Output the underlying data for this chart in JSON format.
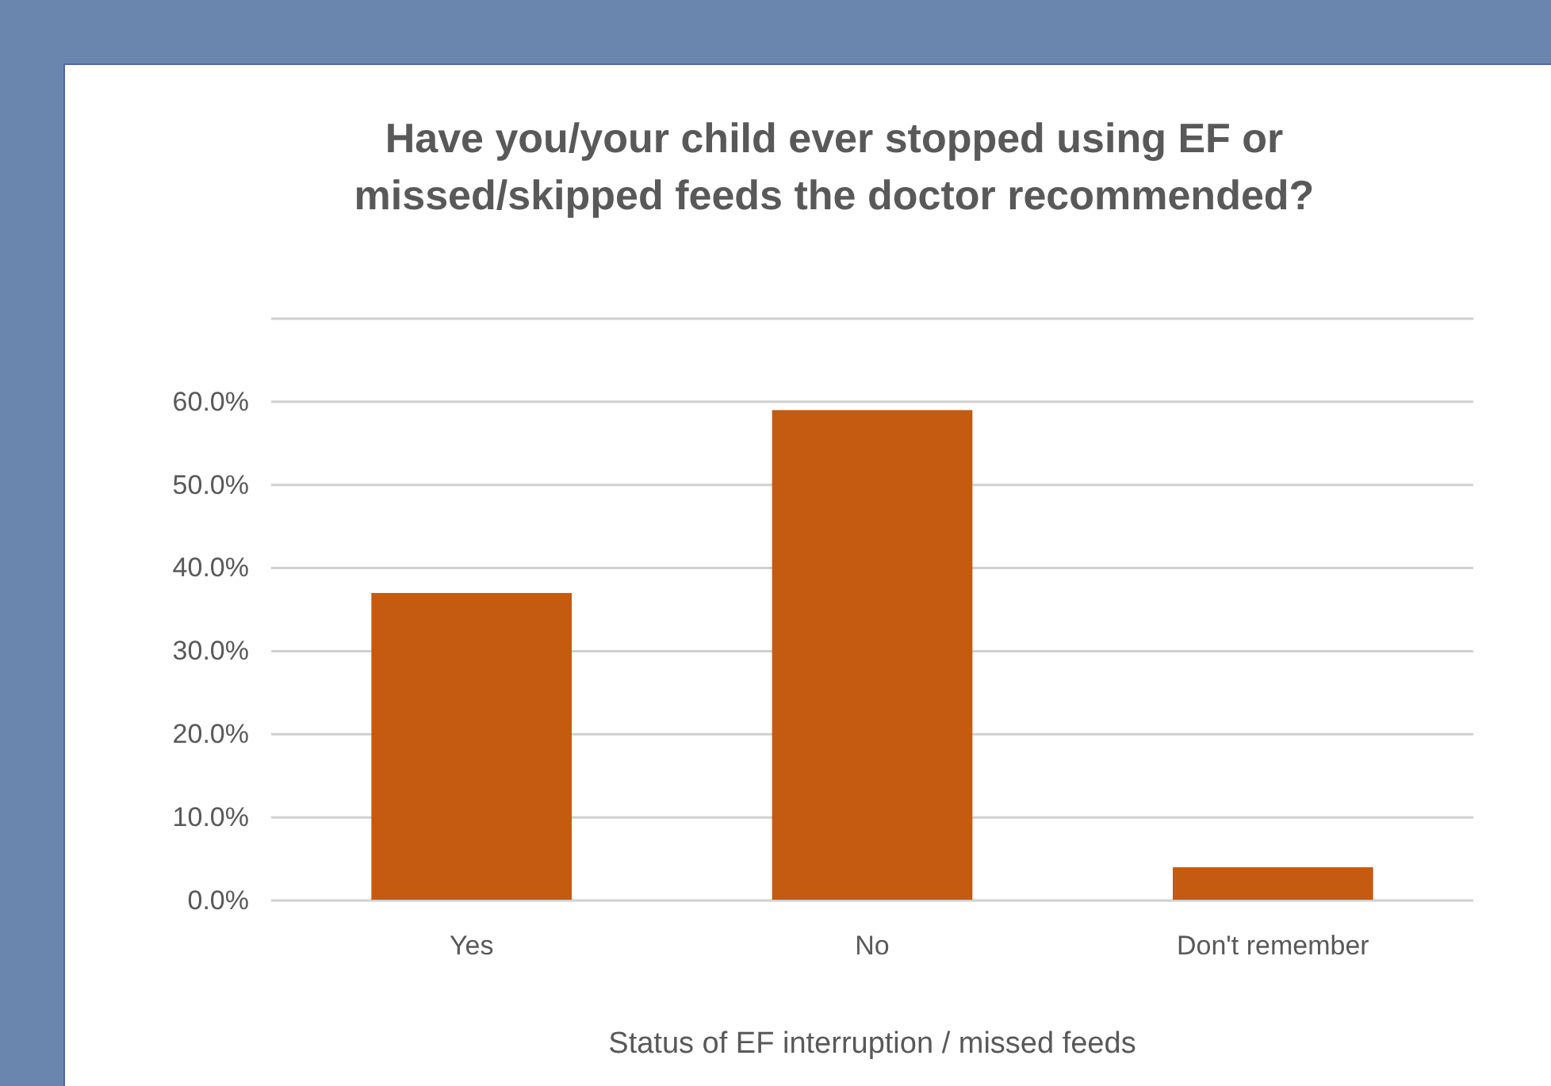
{
  "chart_data": {
    "type": "bar",
    "title": "Have you/your child ever stopped using EF or missed/skipped feeds the doctor recommended?",
    "xlabel": "Status of EF interruption / missed feeds",
    "categories": [
      "Yes",
      "No",
      "Don't remember"
    ],
    "values": [
      37,
      59,
      4
    ],
    "color": "#c55a11",
    "ylim": [
      0,
      70
    ],
    "yticks": [
      {
        "value": 0,
        "label": "0.0%"
      },
      {
        "value": 10,
        "label": "10.0%"
      },
      {
        "value": 20,
        "label": "20.0%"
      },
      {
        "value": 30,
        "label": "30.0%"
      },
      {
        "value": 40,
        "label": "40.0%"
      },
      {
        "value": 50,
        "label": "50.0%"
      },
      {
        "value": 60,
        "label": "60.0%"
      },
      {
        "value": 70,
        "label": null
      }
    ],
    "grid": "y"
  }
}
